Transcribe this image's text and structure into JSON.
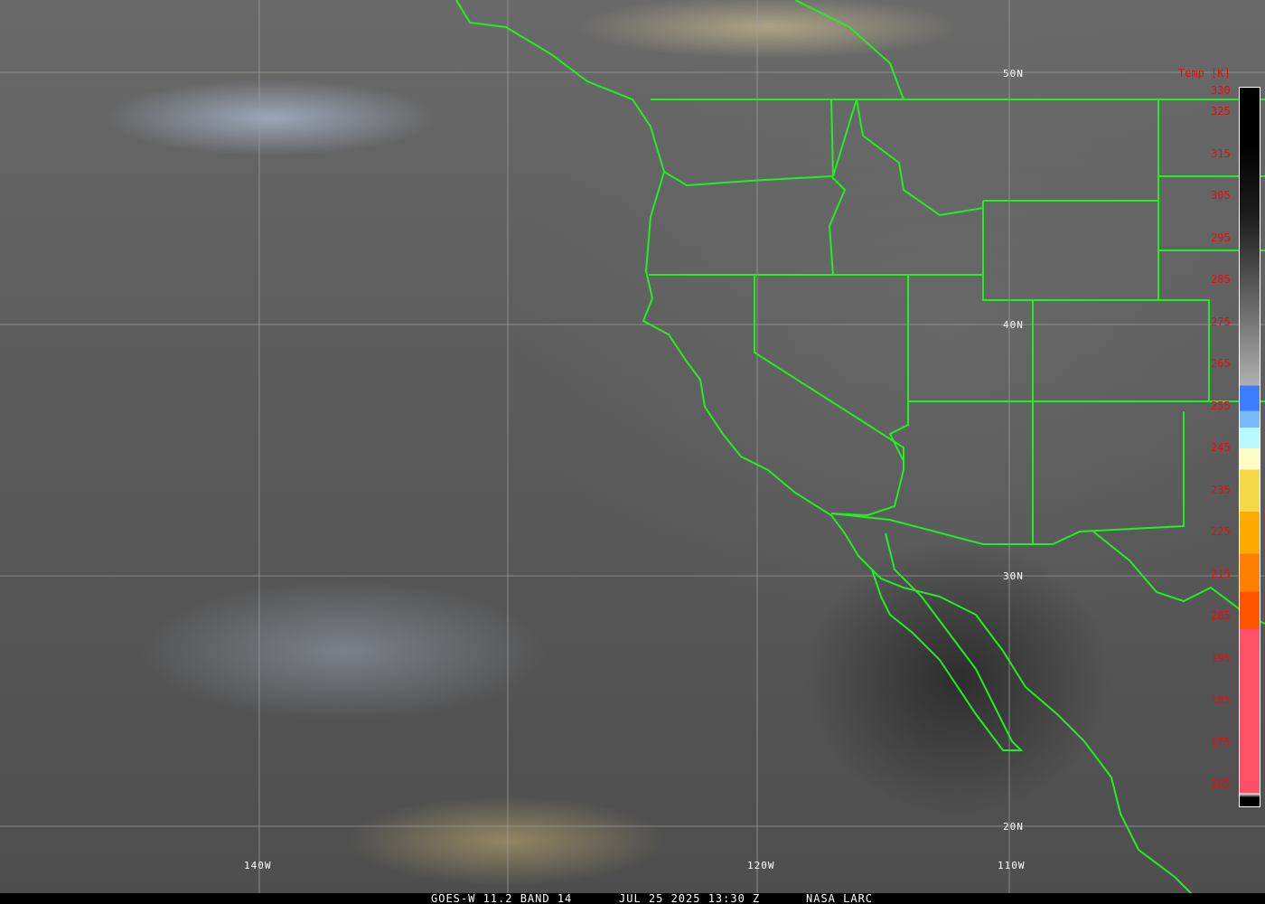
{
  "map": {
    "latitude_labels": [
      "50N",
      "40N",
      "30N",
      "20N"
    ],
    "longitude_labels": [
      "140W",
      "120W",
      "110W"
    ]
  },
  "colorbar": {
    "title": "Temp [K]",
    "ticks": [
      "330",
      "325",
      "315",
      "305",
      "295",
      "285",
      "275",
      "265",
      "255",
      "245",
      "235",
      "225",
      "215",
      "205",
      "195",
      "185",
      "175",
      "165"
    ],
    "colors": {
      "gray_top": "#000000",
      "gray_bottom": "#b0b0b0",
      "blue": "#3a7dff",
      "light_blue": "#7ab8ff",
      "cyan": "#b8f8ff",
      "cream": "#fffcc8",
      "yellow": "#f5d84a",
      "orange": "#ffaa00",
      "dark_orange": "#ff7f00",
      "red_orange": "#ff5500",
      "pink": "#ff5068"
    }
  },
  "caption": {
    "product": "GOES-W 11.2 BAND 14",
    "datetime": "JUL 25 2025 13:30 Z",
    "source": "NASA LARC"
  },
  "border_color": "#22ee22"
}
